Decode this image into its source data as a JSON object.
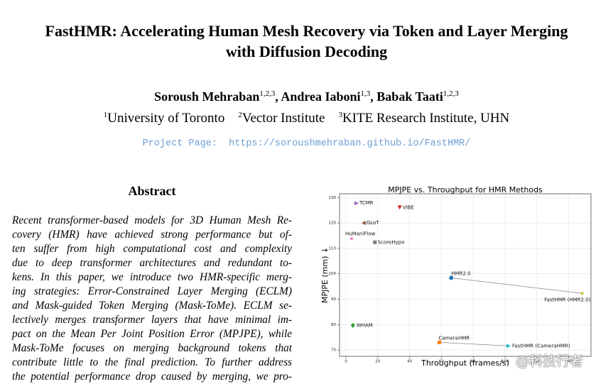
{
  "header": {
    "title_lines": [
      "FastHMR: Accelerating Human Mesh Recovery via Token and Layer Merging",
      "with Diffusion Decoding"
    ],
    "authors": [
      {
        "name": "Soroush Mehraban",
        "sup": "1,2,3"
      },
      {
        "name": "Andrea Iaboni",
        "sup": "1,3"
      },
      {
        "name": "Babak Taati",
        "sup": "1,2,3"
      }
    ],
    "affiliations": [
      {
        "sup": "1",
        "name": "University of Toronto"
      },
      {
        "sup": "2",
        "name": "Vector Institute"
      },
      {
        "sup": "3",
        "name": "KITE Research Institute, UHN"
      }
    ],
    "project_label": "Project Page:",
    "project_url": "https://soroushmehraban.github.io/FastHMR/"
  },
  "abstract": {
    "heading": "Abstract",
    "lines": [
      "Recent transformer-based models for 3D Human Mesh Re-",
      "covery (HMR) have achieved strong performance but of-",
      "ten suffer from high computational cost and complexity",
      "due to deep transformer architectures and redundant to-",
      "kens. In this paper, we introduce two HMR-specific merg-",
      "ing strategies: Error-Constrained Layer Merging (ECLM)",
      "and Mask-guided Token Merging (Mask-ToMe). ECLM se-",
      "lectively merges transformer layers that have minimal im-",
      "pact on the Mean Per Joint Position Error (MPJPE), while",
      "Mask-ToMe focuses on merging background tokens that",
      "contribute little to the final prediction. To further address",
      "the potential performance drop caused by merging, we pro-"
    ]
  },
  "chart_data": {
    "type": "scatter",
    "title": "MPJPE vs. Throughput for HMR Methods",
    "x_label": "Throughput (frames/s)",
    "y_label": "MPJPE (mm) ↓",
    "xlim": [
      -4,
      154
    ],
    "ylim": [
      67.5,
      131.5
    ],
    "xticks": [
      0,
      20,
      40,
      60,
      80,
      100,
      120,
      140
    ],
    "yticks": [
      70,
      80,
      90,
      100,
      110,
      120,
      130
    ],
    "grid": true,
    "series": [
      {
        "name": "TCMR",
        "color": "#9467bd",
        "marker": "triangle-right",
        "x": [
          6.7
        ],
        "values": [
          127.8
        ]
      },
      {
        "name": "VIBE",
        "color": "#d62728",
        "marker": "triangle-down",
        "x": [
          33.8
        ],
        "values": [
          126.1
        ]
      },
      {
        "name": "GLoT",
        "color": "#8c564b",
        "marker": "triangle-left",
        "x": [
          11.1
        ],
        "values": [
          120
        ]
      },
      {
        "name": "HuManiFlow",
        "color": "#e377c2",
        "marker": "star",
        "x": [
          3.6
        ],
        "values": [
          113.8
        ]
      },
      {
        "name": "ScoreHypo",
        "color": "#7f7f7f",
        "marker": "square",
        "x": [
          18.2
        ],
        "values": [
          112.4
        ]
      },
      {
        "name": "HMR2.0",
        "color": "#1f77b4",
        "marker": "circle",
        "x": [
          66.2
        ],
        "values": [
          98.4
        ]
      },
      {
        "name": "FastHMR (HMR2.0)",
        "color": "#bcbd22",
        "marker": "star",
        "x": [
          148.4
        ],
        "values": [
          92.3
        ]
      },
      {
        "name": "WHAM",
        "color": "#2ca02c",
        "marker": "diamond",
        "x": [
          4.4
        ],
        "values": [
          79.7
        ]
      },
      {
        "name": "CameraHMR",
        "color": "#ff7f0e",
        "marker": "square",
        "x": [
          58.7
        ],
        "values": [
          73.0
        ]
      },
      {
        "name": "FastHMR (CameraHMR)",
        "color": "#17becf",
        "marker": "triangle-right",
        "x": [
          102.2
        ],
        "values": [
          71.6
        ]
      }
    ],
    "connections": [
      [
        5,
        6
      ],
      [
        8,
        9
      ]
    ]
  },
  "watermark": "@科技行者"
}
